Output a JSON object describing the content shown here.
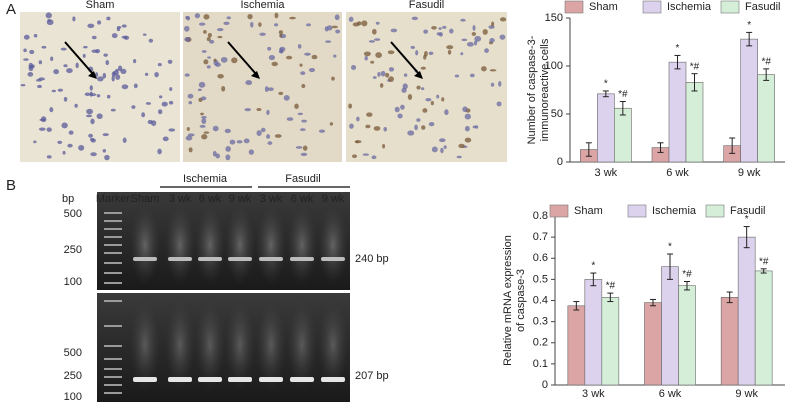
{
  "panels": {
    "a": "A",
    "b": "B"
  },
  "micrographs": [
    "Sham",
    "Ischemia",
    "Fasudil"
  ],
  "gel": {
    "unit": "bp",
    "upper_sizes": [
      "500",
      "250",
      "100"
    ],
    "lower_sizes": [
      "500",
      "250",
      "100"
    ],
    "lanes": [
      "Marker",
      "Sham",
      "3 wk",
      "6 wk",
      "9 wk",
      "3 wk",
      "6 wk",
      "9 wk"
    ],
    "groups": [
      "Ischemia",
      "Fasudil"
    ],
    "upper_band": "240 bp",
    "lower_band": "207 bp"
  },
  "chart_data": [
    {
      "type": "bar",
      "y_label": [
        "Number of caspase-3-",
        "immunoreactive cells"
      ],
      "categories": [
        "3 wk",
        "6 wk",
        "9 wk"
      ],
      "ylim": [
        0,
        150
      ],
      "yticks": [
        0,
        50,
        100,
        150
      ],
      "series": [
        {
          "name": "Sham",
          "color": "#dca5a5",
          "values": [
            13,
            15,
            17
          ],
          "errors": [
            7,
            5,
            8
          ],
          "annotations": [
            null,
            null,
            null
          ]
        },
        {
          "name": "Ischemia",
          "color": "#ddd2ee",
          "values": [
            71,
            104,
            128
          ],
          "errors": [
            3,
            7,
            7
          ],
          "annotations": [
            "*",
            "*",
            "*"
          ]
        },
        {
          "name": "Fasudil",
          "color": "#d4eed8",
          "values": [
            56,
            83,
            91
          ],
          "errors": [
            7,
            9,
            6
          ],
          "annotations": [
            "*#",
            "*#",
            "*#"
          ]
        }
      ]
    },
    {
      "type": "bar",
      "y_label": [
        "Relative mRNA expression",
        "of caspase-3"
      ],
      "categories": [
        "3 wk",
        "6 wk",
        "9 wk"
      ],
      "ylim": [
        0,
        0.8
      ],
      "yticks": [
        0,
        0.1,
        0.2,
        0.3,
        0.4,
        0.5,
        0.6,
        0.7,
        0.8
      ],
      "series": [
        {
          "name": "Sham",
          "color": "#dca5a5",
          "values": [
            0.375,
            0.39,
            0.415
          ],
          "errors": [
            0.02,
            0.015,
            0.025
          ],
          "annotations": [
            null,
            null,
            null
          ]
        },
        {
          "name": "Ischemia",
          "color": "#ddd2ee",
          "values": [
            0.5,
            0.56,
            0.7
          ],
          "errors": [
            0.03,
            0.06,
            0.05
          ],
          "annotations": [
            "*",
            "*",
            "*"
          ]
        },
        {
          "name": "Fasudil",
          "color": "#d4eed8",
          "values": [
            0.415,
            0.47,
            0.54
          ],
          "errors": [
            0.02,
            0.02,
            0.01
          ],
          "annotations": [
            "*#",
            "*#",
            "*#"
          ]
        }
      ]
    }
  ]
}
